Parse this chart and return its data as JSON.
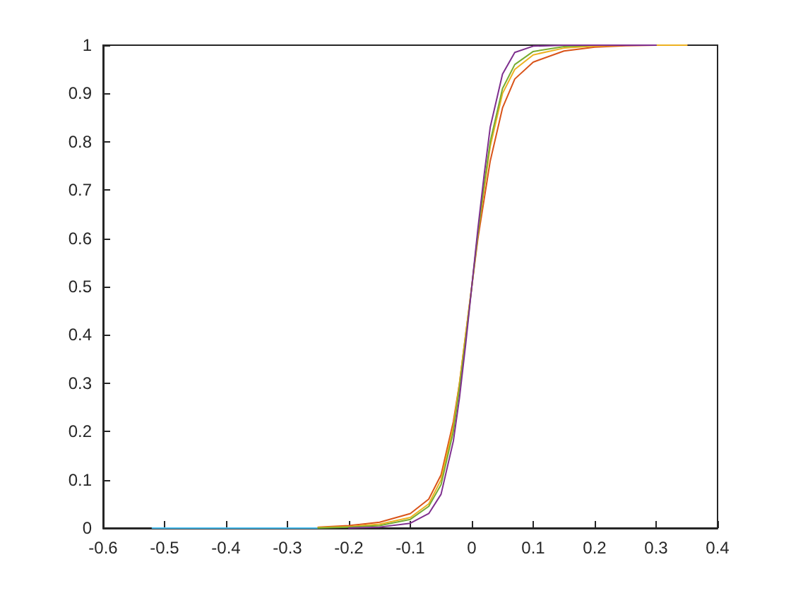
{
  "chart_data": {
    "type": "line",
    "xlim": [
      -0.6,
      0.4
    ],
    "xticks": [
      -0.6,
      -0.5,
      -0.4,
      -0.3,
      -0.2,
      -0.1,
      0,
      0.1,
      0.2,
      0.3,
      0.4
    ],
    "ylim": [
      0,
      1
    ],
    "yticks": [
      0,
      0.1,
      0.2,
      0.3,
      0.4,
      0.5,
      0.6,
      0.7,
      0.8,
      0.9,
      1
    ],
    "grid": false,
    "marker": "none",
    "line_style": "solid",
    "series": [
      {
        "color": "#4dbeee",
        "x": [
          -0.52,
          -0.4,
          -0.3,
          -0.25
        ],
        "values": [
          0,
          0,
          0,
          0
        ]
      },
      {
        "color": "#d95319",
        "x": [
          -0.25,
          -0.2,
          -0.15,
          -0.1,
          -0.07,
          -0.05,
          -0.03,
          -0.02,
          -0.01,
          0,
          0.01,
          0.02,
          0.03,
          0.05,
          0.07,
          0.1,
          0.15,
          0.2,
          0.25,
          0.3,
          0.35
        ],
        "values": [
          0.002,
          0.005,
          0.012,
          0.03,
          0.06,
          0.11,
          0.22,
          0.3,
          0.4,
          0.5,
          0.6,
          0.68,
          0.76,
          0.87,
          0.93,
          0.965,
          0.988,
          0.996,
          0.999,
          1,
          1
        ]
      },
      {
        "color": "#edb120",
        "x": [
          -0.25,
          -0.2,
          -0.15,
          -0.1,
          -0.07,
          -0.05,
          -0.03,
          -0.02,
          -0.01,
          0,
          0.01,
          0.02,
          0.03,
          0.05,
          0.07,
          0.1,
          0.15,
          0.2,
          0.25,
          0.3,
          0.35
        ],
        "values": [
          0.001,
          0.003,
          0.008,
          0.022,
          0.05,
          0.1,
          0.21,
          0.3,
          0.4,
          0.5,
          0.61,
          0.7,
          0.79,
          0.9,
          0.95,
          0.98,
          0.994,
          0.998,
          1,
          1,
          1
        ]
      },
      {
        "color": "#77ac30",
        "x": [
          -0.25,
          -0.2,
          -0.15,
          -0.1,
          -0.07,
          -0.05,
          -0.03,
          -0.02,
          -0.01,
          0,
          0.01,
          0.02,
          0.03,
          0.05,
          0.07,
          0.1,
          0.15,
          0.2,
          0.3
        ],
        "values": [
          0,
          0.002,
          0.005,
          0.018,
          0.045,
          0.09,
          0.2,
          0.29,
          0.39,
          0.5,
          0.61,
          0.71,
          0.8,
          0.91,
          0.96,
          0.987,
          0.997,
          1,
          1
        ]
      },
      {
        "color": "#7e2f8e",
        "x": [
          -0.2,
          -0.15,
          -0.1,
          -0.07,
          -0.05,
          -0.03,
          -0.02,
          -0.01,
          0,
          0.01,
          0.02,
          0.03,
          0.05,
          0.07,
          0.1,
          0.15,
          0.3
        ],
        "values": [
          0,
          0.002,
          0.01,
          0.03,
          0.07,
          0.18,
          0.27,
          0.38,
          0.5,
          0.62,
          0.73,
          0.83,
          0.94,
          0.985,
          0.998,
          1,
          1
        ]
      }
    ]
  }
}
